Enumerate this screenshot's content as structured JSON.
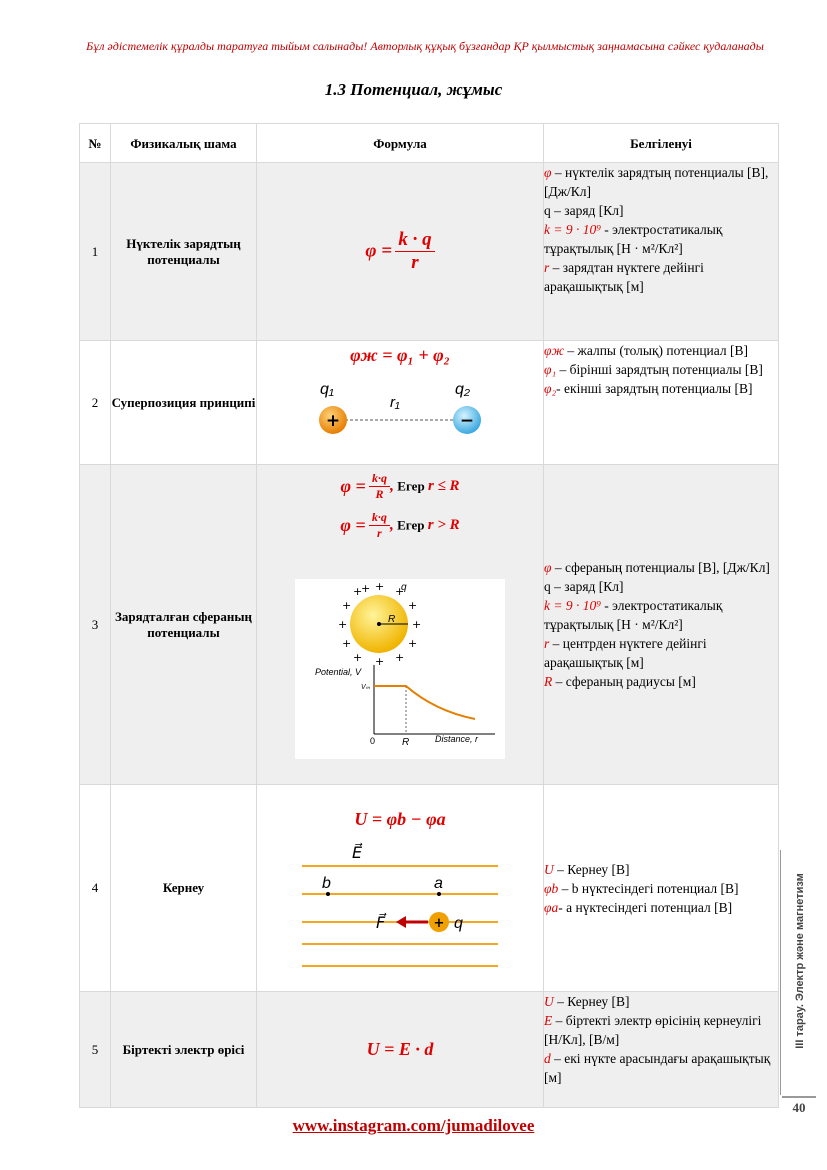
{
  "notice": "Бұл әдістемелік құралды таратуға тыйым салынады! Авторлық құқық бұзғандар ҚР қылмыстық заңнамасына сәйкес қудаланады",
  "title": "1.3 Потенциал, жұмыс",
  "headers": {
    "no": "№",
    "quantity": "Физикалық шама",
    "formula": "Формула",
    "notation": "Белгіленуі"
  },
  "rows": [
    {
      "num": "1",
      "name": "Нүктелік зарядтың потенциалы",
      "formula": {
        "lhs": "φ =",
        "num": "k · q",
        "den": "r"
      },
      "desc": [
        {
          "sym": "φ",
          "text": " – нүктелік зарядтың потенциалы [В], [Дж/Кл]"
        },
        {
          "sym": "",
          "text": "q – заряд [Кл]"
        },
        {
          "sym": "k = 9 · 10⁹",
          "text": " - электростатикалық тұрақтылық [Н · м²/Кл²]"
        },
        {
          "sym": "r",
          "text": " – зарядтан нүктеге дейінгі арақашықтық [м]"
        }
      ]
    },
    {
      "num": "2",
      "name": "Суперпозиция принципі",
      "formula": {
        "text": "φж = φ₁ + φ₂",
        "q1": "q₁",
        "q2": "q₂",
        "r1": "r₁",
        "plus": "+",
        "minus": "−"
      },
      "desc": [
        {
          "sym": "φж",
          "text": " – жалпы (толық) потенциал [В]"
        },
        {
          "sym": "φ₁",
          "text": " – бірінші зарядтың потенциалы [В]"
        },
        {
          "sym": "φ₂",
          "text": "- екінші зарядтың потенциалы [В]"
        }
      ]
    },
    {
      "num": "3",
      "name": "Зарядталған сфераның потенциалы",
      "formula": {
        "f1_lhs": "φ =",
        "f1_num": "k·q",
        "f1_den": "R",
        "f1_cond_word": "Егер",
        "f1_cond": "r ≤ R",
        "f2_lhs": "φ =",
        "f2_num": "k·q",
        "f2_den": "r",
        "f2_cond_word": "Егер",
        "f2_cond": "r > R",
        "graph_ylabel": "Potential, V",
        "graph_vm": "Vₘ",
        "graph_zero": "0",
        "graph_R": "R",
        "graph_xlabel": "Distance, r",
        "sphere_R": "R",
        "sphere_q": "q"
      },
      "desc": [
        {
          "sym": "φ",
          "text": " – сфераның потенциалы [В], [Дж/Кл]"
        },
        {
          "sym": "",
          "text": "q – заряд [Кл]"
        },
        {
          "sym": "k = 9 · 10⁹",
          "text": " - электростатикалық тұрақтылық [Н · м²/Кл²]"
        },
        {
          "sym": "r",
          "text": " – центрден нүктеге дейінгі арақашықтық [м]"
        },
        {
          "sym": "R",
          "text": " – сфераның радиусы [м]"
        }
      ]
    },
    {
      "num": "4",
      "name": "Кернеу",
      "formula": {
        "text": "U = φb − φa",
        "E": "E⃗",
        "F": "F⃗",
        "b": "b",
        "a": "a",
        "q": "q",
        "plus": "+"
      },
      "desc": [
        {
          "sym": "U",
          "text": " – Кернеу [В]"
        },
        {
          "sym": "φb",
          "text": " – b нүктесіндегі потенциал [В]"
        },
        {
          "sym": "φa",
          "text": "- а нүктесіндегі потенциал [В]"
        }
      ]
    },
    {
      "num": "5",
      "name": "Біртекті электр өрісі",
      "formula": {
        "text": "U = E · d"
      },
      "desc": [
        {
          "sym": "U",
          "text": " – Кернеу [В]"
        },
        {
          "sym": "E",
          "text": " – біртекті электр өрісінің кернеулігі [Н/Кл], [В/м]"
        },
        {
          "sym": "d",
          "text": " – екі нүкте арасындағы арақашықтық [м]"
        }
      ]
    }
  ],
  "sidebar": "III тарау. Электр және магнетизм",
  "page_number": "40",
  "footer_link": "www.instagram.com/jumadilovee",
  "colors": {
    "accent_red": "#e00000",
    "notice_red": "#c00000",
    "shaded": "#efefef",
    "field_lines": "#f5a623"
  }
}
